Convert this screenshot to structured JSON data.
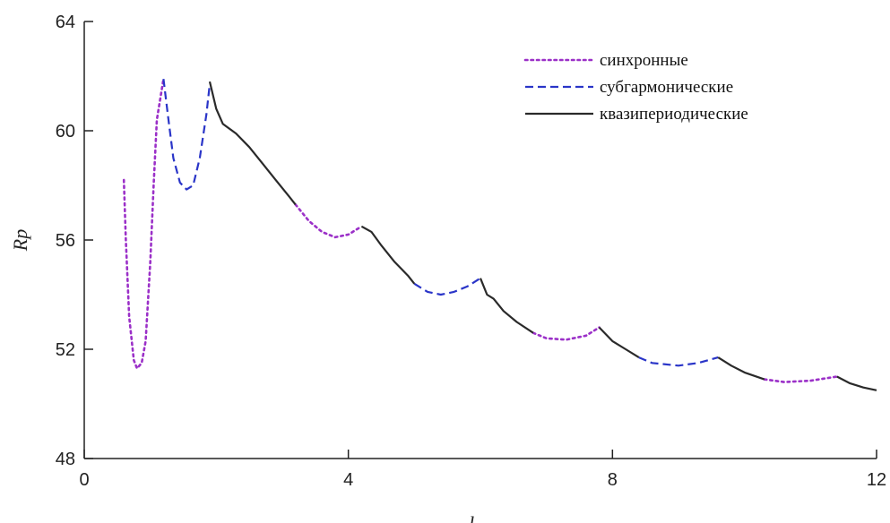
{
  "chart_data": {
    "type": "line",
    "xlabel": "l",
    "ylabel": "Rp",
    "xlim": [
      0,
      12
    ],
    "ylim": [
      48,
      64
    ],
    "x_ticks": [
      0,
      4,
      8,
      12
    ],
    "y_ticks": [
      48,
      52,
      56,
      60,
      64
    ],
    "grid": false,
    "legend_position": "top-right",
    "series": [
      {
        "name": "синхронные",
        "color": "#9b30c8",
        "style": "dotted",
        "segments": [
          [
            [
              0.6,
              58.2
            ],
            [
              0.63,
              56.0
            ],
            [
              0.68,
              53.2
            ],
            [
              0.75,
              51.6
            ],
            [
              0.8,
              51.3
            ],
            [
              0.87,
              51.5
            ],
            [
              0.93,
              52.3
            ],
            [
              1.0,
              55.2
            ],
            [
              1.05,
              58.0
            ],
            [
              1.1,
              60.4
            ],
            [
              1.2,
              61.9
            ]
          ],
          [
            [
              3.2,
              57.3
            ],
            [
              3.4,
              56.7
            ],
            [
              3.6,
              56.3
            ],
            [
              3.8,
              56.1
            ],
            [
              4.0,
              56.2
            ],
            [
              4.2,
              56.5
            ]
          ],
          [
            [
              6.8,
              52.6
            ],
            [
              7.0,
              52.4
            ],
            [
              7.3,
              52.35
            ],
            [
              7.6,
              52.5
            ],
            [
              7.8,
              52.8
            ]
          ],
          [
            [
              10.3,
              50.9
            ],
            [
              10.6,
              50.8
            ],
            [
              11.0,
              50.85
            ],
            [
              11.4,
              51.0
            ]
          ]
        ]
      },
      {
        "name": "субгармонические",
        "color": "#2a35c8",
        "style": "dashed",
        "segments": [
          [
            [
              1.2,
              61.9
            ],
            [
              1.27,
              60.5
            ],
            [
              1.35,
              59.0
            ],
            [
              1.45,
              58.1
            ],
            [
              1.55,
              57.85
            ],
            [
              1.65,
              58.0
            ],
            [
              1.75,
              59.0
            ],
            [
              1.85,
              60.6
            ],
            [
              1.9,
              61.7
            ]
          ],
          [
            [
              5.0,
              54.4
            ],
            [
              5.2,
              54.1
            ],
            [
              5.4,
              54.0
            ],
            [
              5.6,
              54.1
            ],
            [
              5.8,
              54.3
            ],
            [
              6.0,
              54.6
            ]
          ],
          [
            [
              8.4,
              51.7
            ],
            [
              8.6,
              51.5
            ],
            [
              9.0,
              51.4
            ],
            [
              9.3,
              51.5
            ],
            [
              9.6,
              51.7
            ]
          ]
        ]
      },
      {
        "name": "квазипериодические",
        "color": "#2a2a2a",
        "style": "solid",
        "segments": [
          [
            [
              1.9,
              61.8
            ],
            [
              2.0,
              60.8
            ],
            [
              2.1,
              60.25
            ],
            [
              2.3,
              59.9
            ],
            [
              2.5,
              59.4
            ],
            [
              2.7,
              58.8
            ],
            [
              2.9,
              58.2
            ],
            [
              3.1,
              57.6
            ],
            [
              3.2,
              57.3
            ]
          ],
          [
            [
              4.2,
              56.5
            ],
            [
              4.35,
              56.3
            ],
            [
              4.5,
              55.8
            ],
            [
              4.7,
              55.2
            ],
            [
              4.9,
              54.7
            ],
            [
              5.0,
              54.4
            ]
          ],
          [
            [
              6.0,
              54.6
            ],
            [
              6.1,
              54.0
            ],
            [
              6.2,
              53.85
            ],
            [
              6.35,
              53.4
            ],
            [
              6.55,
              53.0
            ],
            [
              6.8,
              52.6
            ]
          ],
          [
            [
              7.8,
              52.8
            ],
            [
              8.0,
              52.3
            ],
            [
              8.2,
              52.0
            ],
            [
              8.4,
              51.7
            ]
          ],
          [
            [
              9.6,
              51.7
            ],
            [
              9.8,
              51.4
            ],
            [
              10.0,
              51.15
            ],
            [
              10.3,
              50.9
            ]
          ],
          [
            [
              11.4,
              51.0
            ],
            [
              11.6,
              50.75
            ],
            [
              11.8,
              50.6
            ],
            [
              12.0,
              50.5
            ]
          ]
        ]
      }
    ]
  }
}
